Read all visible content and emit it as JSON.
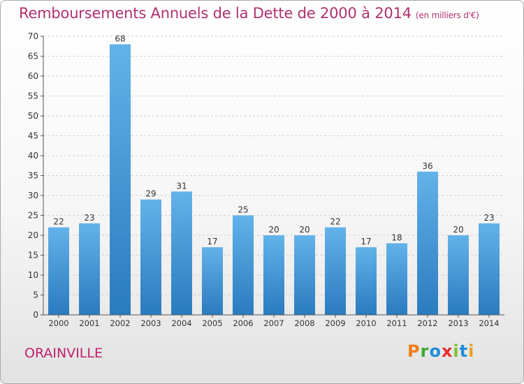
{
  "title": "Remboursements Annuels de la Dette de 2000 à 2014",
  "unit": "(en milliers d'€)",
  "place": "ORAINVILLE",
  "logo_text": "Proxiti",
  "colors": {
    "bar": "#3d9ad9",
    "bar_light": "#63b2ea",
    "bar_dark": "#2a7bbf",
    "title": "#b03070",
    "axis": "#333333"
  },
  "chart_data": {
    "type": "bar",
    "categories": [
      "2000",
      "2001",
      "2002",
      "2003",
      "2004",
      "2005",
      "2006",
      "2007",
      "2008",
      "2009",
      "2010",
      "2011",
      "2012",
      "2013",
      "2014"
    ],
    "values": [
      22,
      23,
      68,
      29,
      31,
      17,
      25,
      20,
      20,
      22,
      17,
      18,
      36,
      20,
      23
    ],
    "ylim": [
      0,
      70
    ],
    "yticks": [
      0,
      5,
      10,
      15,
      20,
      25,
      30,
      35,
      40,
      45,
      50,
      55,
      60,
      65,
      70
    ],
    "grid": true,
    "xlabel": "",
    "ylabel": ""
  }
}
